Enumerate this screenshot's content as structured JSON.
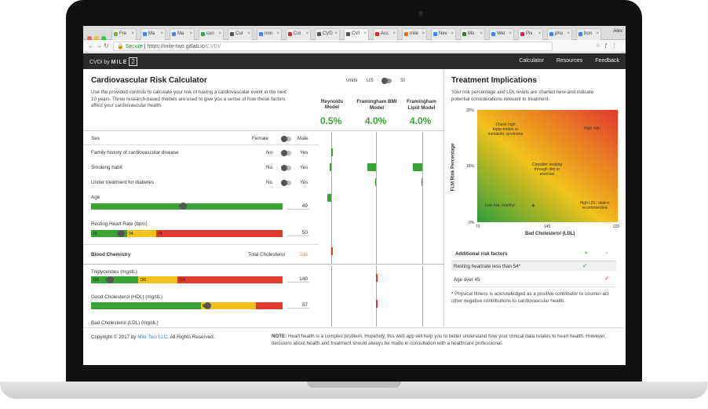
{
  "browser": {
    "tabs": [
      "Fre",
      "Ma",
      "Ma",
      "cun",
      "Cur",
      "non",
      "Col",
      "CVD",
      "CVI",
      "Acc",
      "mile",
      "Nev",
      "Mo",
      "Wel",
      "Pix",
      "pho",
      "bon"
    ],
    "active_tab": 8,
    "user": "Alex",
    "url_secure": "Secure",
    "url_domain": "https://mile-two.gitlab.io",
    "url_path": "/CVDi/"
  },
  "app": {
    "brand_prefix": "CVDi by",
    "brand_name": "MILE",
    "brand_box": "2",
    "nav": [
      "Calculator",
      "Resources",
      "Feedback"
    ]
  },
  "calc": {
    "title": "Cardiovascular Risk Calculator",
    "units_label": "Units",
    "units_us": "US",
    "units_si": "SI",
    "description": "Use the provided controls to calculate your risk of having a cardiovascular event in the next 10 years. Three research-based models are used to give you a sense of how these factors affect your cardiovascular health.",
    "models": [
      {
        "name": "Reynolds Model",
        "value": "0.5%"
      },
      {
        "name": "Framingham BMI Model",
        "value": "4.0%"
      },
      {
        "name": "Framingham Lipid Model",
        "value": "4.0%"
      }
    ],
    "sex_label": "Sex",
    "sex_female": "Female",
    "sex_male": "Male",
    "toggles": [
      {
        "label": "Family history of cardiovascular disease",
        "no": "No",
        "yes": "Yes"
      },
      {
        "label": "Smoking habit",
        "no": "No",
        "yes": "Yes"
      },
      {
        "label": "Under treatment for diabetes",
        "no": "No",
        "yes": "Yes"
      }
    ],
    "age_label": "Age",
    "age_value": "49",
    "hr_label": "Resting Heart Rate (bpm)",
    "hr_value": "50",
    "hr_ticks": [
      "29",
      "54",
      "74"
    ],
    "blood_label": "Blood Chemistry",
    "total_chol_label": "Total Cholesterol",
    "total_chol_value": "215",
    "trig_label": "Triglycerides (mg/dL)",
    "trig_value": "140",
    "trig_ticks": [
      "100",
      "150",
      "200"
    ],
    "hdl_label": "Good Cholesterol (HDL) (mg/dL)",
    "hdl_value": "57",
    "hdl_ticks": [
      "60"
    ],
    "ldl_label": "Bad Cholesterol (LDL) (mg/dL)"
  },
  "treatment": {
    "title": "Treatment Implications",
    "description": "Your risk percentage and LDL levels are charted here and indicate potential considerations relevant to treatment.",
    "chart_data": {
      "type": "scatter",
      "title": "",
      "xlabel": "Bad Cholesterol (LDL)",
      "ylabel": "FLM Risk Percentage",
      "x_ticks": [
        "70",
        "145",
        "220"
      ],
      "y_ticks": [
        "30%",
        "15%",
        "0%"
      ],
      "xlim": [
        70,
        220
      ],
      "ylim": [
        0,
        30
      ],
      "points": [
        {
          "x": 130,
          "y": 4
        }
      ],
      "annotations": [
        "Check high triglycerides or metabolic syndrome",
        "High risk!",
        "Consider treating through diet or exercise",
        "High LDL; statins recommended",
        "Low risk, healthy!"
      ],
      "colors": {
        "low": "#2e9e3a",
        "mid": "#f2c21a",
        "high": "#e03a2e"
      }
    },
    "risk_header": "Additional risk factors",
    "plus": "+",
    "minus": "-",
    "risks": [
      {
        "label": "Resting heartrate less than 54*",
        "mark": "✓",
        "side": "plus"
      },
      {
        "label": "Age over 45",
        "mark": "✓",
        "side": "minus"
      }
    ],
    "footnote": "* Physical fitness is acknowledged as a positive contributor to counter-act other negative contributions to cardiovascular health."
  },
  "footer": {
    "copyright": "Copyright © 2017 by",
    "company": "Mile Two LLC",
    "rights": ". All Rights Reserved.",
    "note_bold": "NOTE:",
    "note": "Heart health is a complex problem. Hopefully, this web app will help you to better understand how your clinical data relates to heart health. However, decisions about health and treatment should always be made in consultation with a healthcare professional."
  }
}
